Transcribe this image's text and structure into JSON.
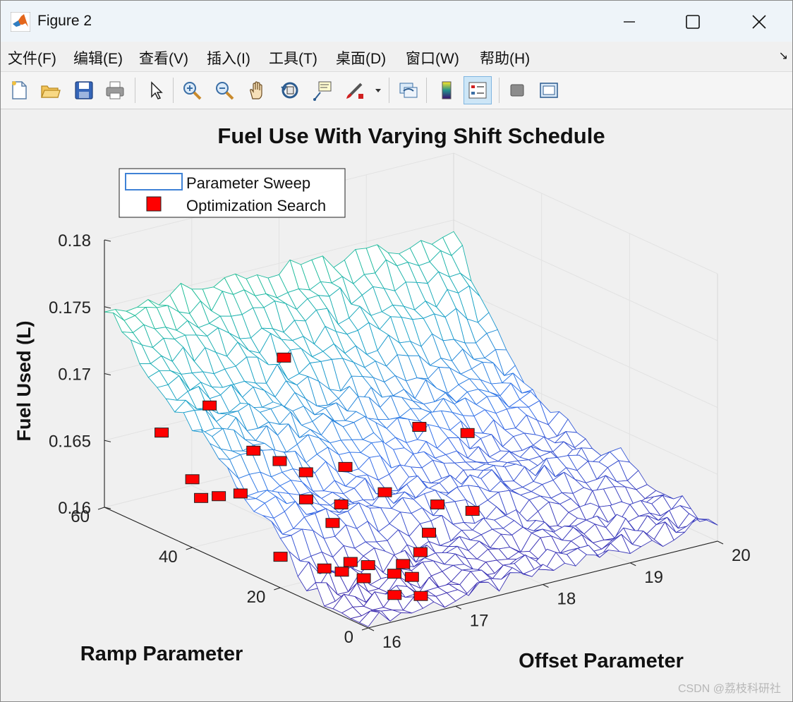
{
  "window": {
    "title": "Figure 2",
    "controls": {
      "minimize": "—",
      "maximize": "☐",
      "close": "✕"
    }
  },
  "menu": [
    "文件(F)",
    "编辑(E)",
    "查看(V)",
    "插入(I)",
    "工具(T)",
    "桌面(D)",
    "窗口(W)",
    "帮助(H)"
  ],
  "menu_corner": "↘",
  "toolbar": {
    "icons": [
      "new-figure-icon",
      "open-file-icon",
      "save-icon",
      "print-icon",
      "pointer-icon",
      "zoom-in-icon",
      "zoom-out-icon",
      "pan-icon",
      "rotate-3d-icon",
      "data-cursor-icon",
      "brush-icon",
      "link-plot-icon",
      "colorbar-icon",
      "legend-icon",
      "hide-plot-tools-icon",
      "show-plot-tools-icon"
    ],
    "active": "legend-icon"
  },
  "chart_data": {
    "type": "surface-3d",
    "title": "Fuel Use With Varying Shift Schedule",
    "xlabel": "Offset Parameter",
    "ylabel": "Ramp Parameter",
    "zlabel": "Fuel Used (L)",
    "xlim": [
      16,
      20
    ],
    "ylim": [
      0,
      60
    ],
    "zlim": [
      0.16,
      0.18
    ],
    "xticks": [
      "16",
      "17",
      "18",
      "19",
      "20"
    ],
    "yticks": [
      "0",
      "20",
      "40",
      "60"
    ],
    "zticks": [
      "0.16",
      "0.165",
      "0.17",
      "0.175",
      "0.18"
    ],
    "legend": [
      {
        "label": "Parameter Sweep",
        "style": "mesh"
      },
      {
        "label": "Optimization Search",
        "style": "red-square"
      }
    ],
    "series": [
      {
        "name": "Optimization Search",
        "points": [
          [
            16.5,
            57,
            0.1652
          ],
          [
            17.1,
            58,
            0.1661
          ],
          [
            16.6,
            52,
            0.1623
          ],
          [
            16.6,
            50,
            0.1612
          ],
          [
            16.5,
            44,
            0.1624
          ],
          [
            17.8,
            55,
            0.169
          ],
          [
            16.9,
            47,
            0.1615
          ],
          [
            17.3,
            52,
            0.1633
          ],
          [
            17.5,
            50,
            0.1625
          ],
          [
            17.6,
            46,
            0.1621
          ],
          [
            19.2,
            52,
            0.162
          ],
          [
            19.5,
            47,
            0.1618
          ],
          [
            18.0,
            45,
            0.162
          ],
          [
            17.4,
            42,
            0.161
          ],
          [
            17.6,
            38,
            0.1609
          ],
          [
            17.3,
            34,
            0.1606
          ],
          [
            18.1,
            38,
            0.161
          ],
          [
            18.4,
            32,
            0.1605
          ],
          [
            16.3,
            26,
            0.1609
          ],
          [
            16.5,
            20,
            0.1606
          ],
          [
            16.6,
            18,
            0.1605
          ],
          [
            16.8,
            20,
            0.1606
          ],
          [
            16.9,
            18,
            0.1605
          ],
          [
            16.7,
            15,
            0.1603
          ],
          [
            17.0,
            14,
            0.1603
          ],
          [
            17.1,
            12,
            0.1602
          ],
          [
            17.2,
            16,
            0.1604
          ],
          [
            17.5,
            18,
            0.1605
          ],
          [
            16.7,
            8,
            0.1601
          ],
          [
            16.9,
            6,
            0.16
          ],
          [
            18.6,
            28,
            0.1603
          ],
          [
            17.9,
            24,
            0.1604
          ]
        ]
      }
    ]
  },
  "watermark": "CSDN @荔枝科研社"
}
